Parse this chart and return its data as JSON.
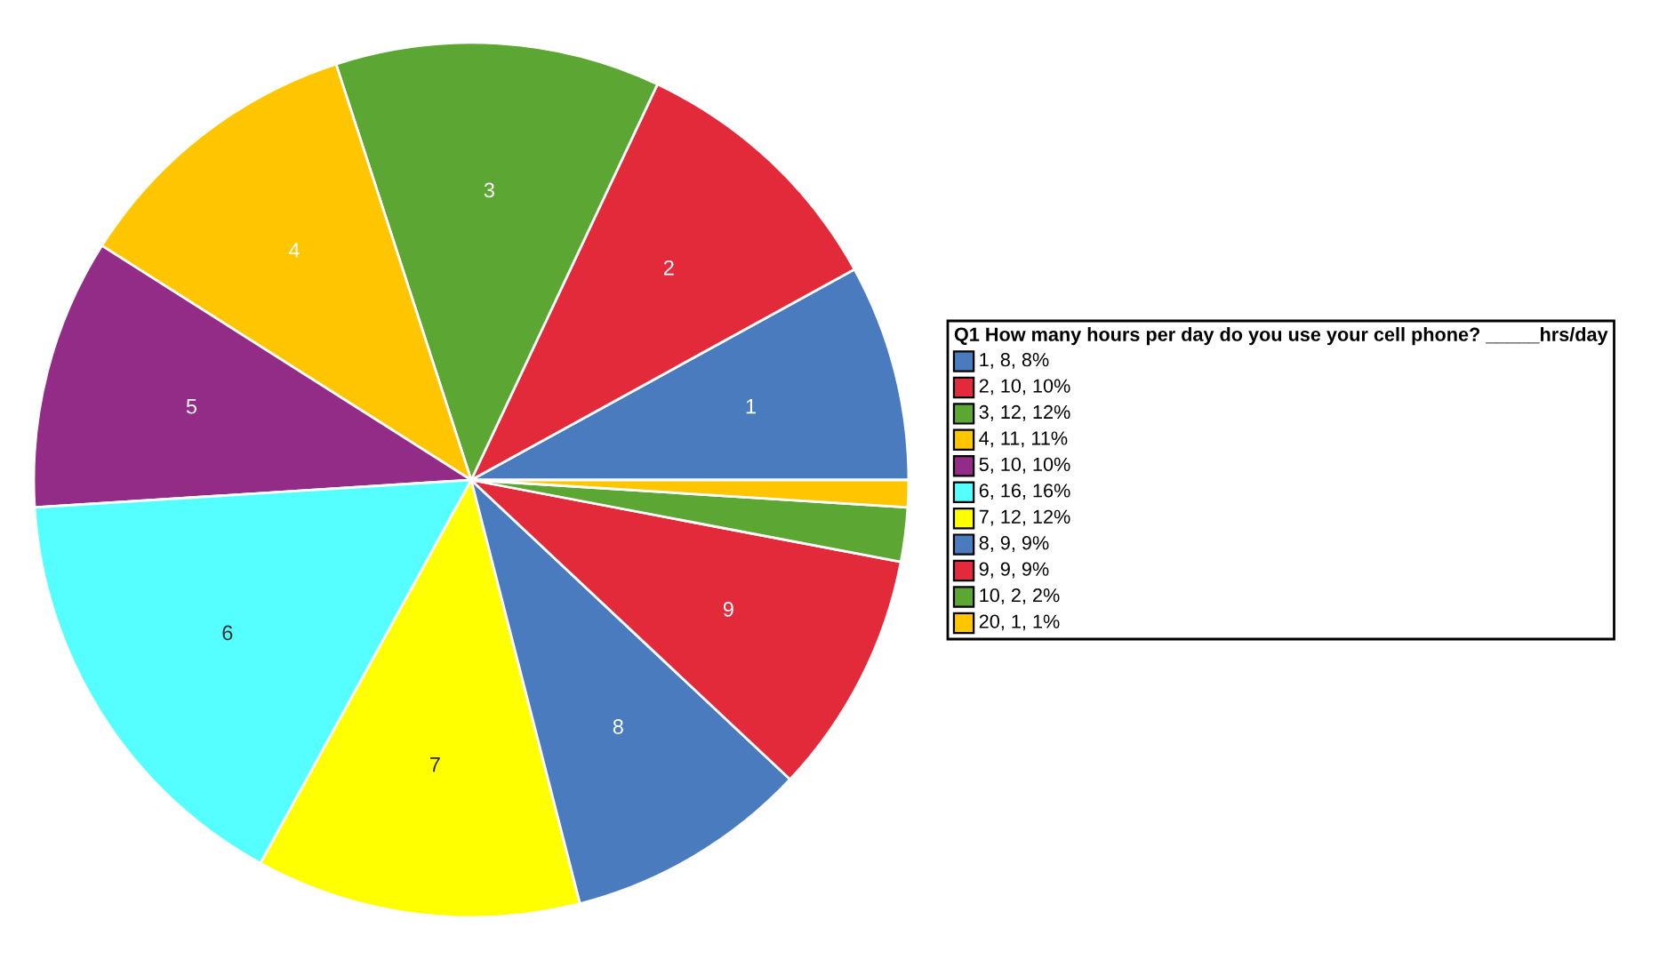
{
  "chart_data": {
    "type": "pie",
    "categories": [
      "1",
      "2",
      "3",
      "4",
      "5",
      "6",
      "7",
      "8",
      "9",
      "10",
      "20"
    ],
    "values": [
      8,
      10,
      12,
      11,
      10,
      16,
      12,
      9,
      9,
      2,
      1
    ],
    "value_labels": [
      ", 8, 8%",
      ", 10, 10%",
      ", 12, 12%",
      ", 11, 11%",
      ", 10, 10%",
      ", 16, 16%",
      ", 12, 12%",
      ", 9, 9%",
      ", 9, 9%",
      ", 2, 2%",
      ", 1, 1%"
    ],
    "colors": [
      "#4a7bbf",
      "#e32a3a",
      "#5ca634",
      "#ffc600",
      "#922c86",
      "#55ffff",
      "#ffff00",
      "#4a7bbf",
      "#e32a3a",
      "#5ca634",
      "#ffc600"
    ],
    "legend_title": "Q1 How many hours per day do you use your cell phone? _____hrs/day",
    "legend": "right"
  }
}
